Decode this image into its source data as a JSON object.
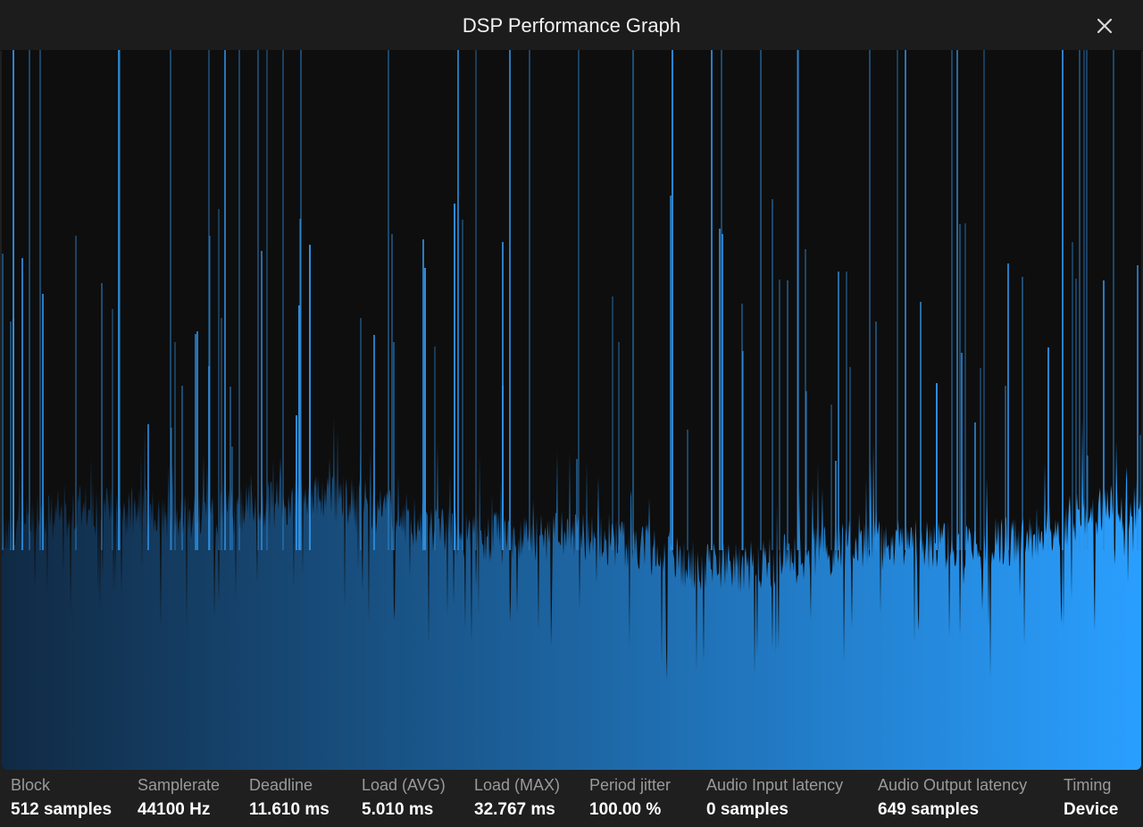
{
  "window": {
    "title": "DSP Performance Graph",
    "close_icon": "close-icon"
  },
  "colors": {
    "graph_background": "#0e0e0e",
    "bar_start": "#102a44",
    "bar_end": "#2a9fff",
    "spike": "#2f8fe0"
  },
  "stats": [
    {
      "label": "Block",
      "value": "512 samples"
    },
    {
      "label": "Samplerate",
      "value": "44100 Hz"
    },
    {
      "label": "Deadline",
      "value": "11.610 ms"
    },
    {
      "label": "Load (AVG)",
      "value": "5.010 ms"
    },
    {
      "label": "Load (MAX)",
      "value": "32.767 ms"
    },
    {
      "label": "Period jitter",
      "value": "100.00 %"
    },
    {
      "label": "Audio Input latency",
      "value": "0 samples"
    },
    {
      "label": "Audio Output latency",
      "value": "649 samples"
    },
    {
      "label": "Timing",
      "value": "Device"
    }
  ]
}
